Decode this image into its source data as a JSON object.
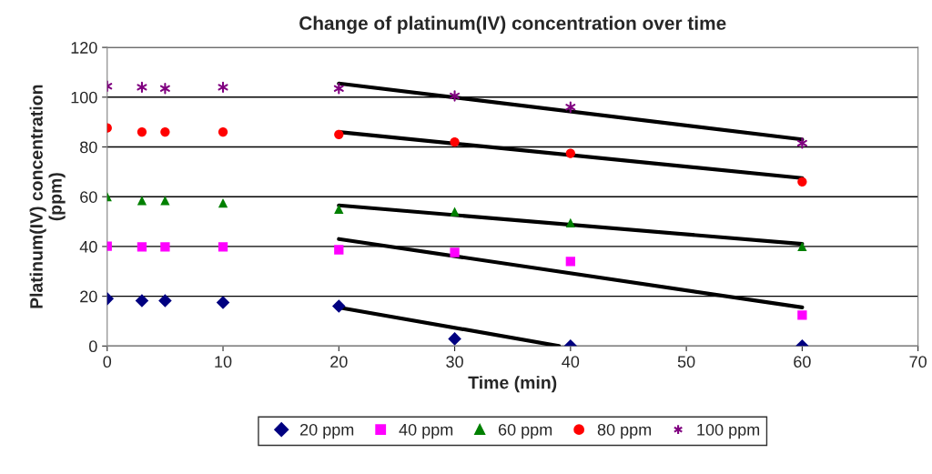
{
  "chart_data": {
    "type": "scatter",
    "title": "Change of platinum(IV) concentration over time",
    "xlabel": "Time (min)",
    "ylabel": "Platinum(IV) concentration\n(ppm)",
    "x": [
      0,
      3,
      5,
      10,
      20,
      30,
      40,
      60
    ],
    "series": [
      {
        "name": "20 ppm",
        "color": "#000080",
        "marker": "diamond",
        "values": [
          19,
          18.2,
          18.2,
          17.5,
          16,
          2.9,
          0,
          0
        ]
      },
      {
        "name": "40 ppm",
        "color": "#ff00ff",
        "marker": "square",
        "values": [
          40.1,
          39.8,
          39.8,
          39.8,
          38.7,
          37.6,
          34,
          12.4
        ]
      },
      {
        "name": "60 ppm",
        "color": "#008000",
        "marker": "triangle",
        "values": [
          60,
          58.5,
          58.5,
          57.5,
          55,
          54,
          49.5,
          40
        ]
      },
      {
        "name": "80 ppm",
        "color": "#ff0000",
        "marker": "circle",
        "values": [
          87.6,
          86,
          86,
          86,
          85,
          82,
          77.4,
          66
        ]
      },
      {
        "name": "100 ppm",
        "color": "#800080",
        "marker": "cross",
        "values": [
          104.4,
          104,
          103.5,
          104,
          103.5,
          100.5,
          96,
          81.5
        ]
      },
      {
        "type": "line",
        "color": "#000000",
        "marker": "none",
        "x": [
          20,
          39
        ],
        "values": [
          15.5,
          0
        ]
      },
      {
        "type": "line",
        "color": "#000000",
        "marker": "none",
        "x": [
          20,
          60
        ],
        "values": [
          43,
          15.5
        ]
      },
      {
        "type": "line",
        "color": "#000000",
        "marker": "none",
        "x": [
          20,
          60
        ],
        "values": [
          56.5,
          41
        ]
      },
      {
        "type": "line",
        "color": "#000000",
        "marker": "none",
        "x": [
          20,
          60
        ],
        "values": [
          86,
          67.5
        ]
      },
      {
        "type": "line",
        "color": "#000000",
        "marker": "none",
        "x": [
          20,
          60
        ],
        "values": [
          105.5,
          83
        ]
      }
    ],
    "xlim": [
      0,
      70
    ],
    "xticks": [
      0,
      10,
      20,
      30,
      40,
      50,
      60,
      70
    ],
    "ylim": [
      0,
      120
    ],
    "yticks": [
      0,
      20,
      40,
      60,
      80,
      100,
      120
    ],
    "grid": "y",
    "legend": "bottom"
  }
}
